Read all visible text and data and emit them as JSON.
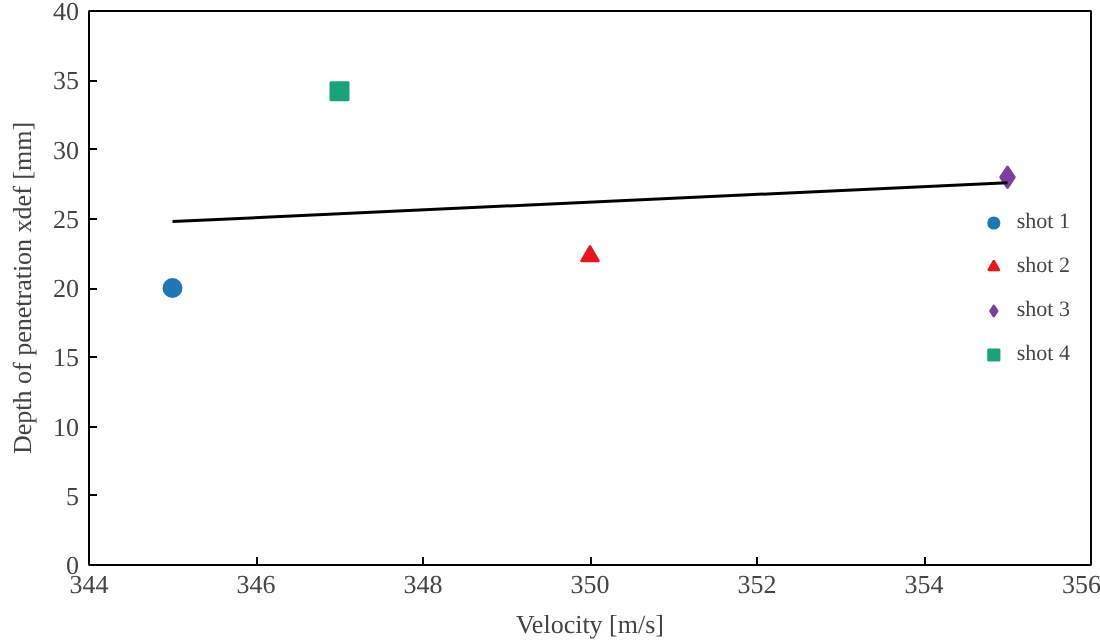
{
  "chart_data": {
    "type": "scatter",
    "xlabel": "Velocity [m/s]",
    "ylabel": "Depth of penetration xdef [mm]",
    "xlim": [
      344,
      356
    ],
    "xticks": [
      344,
      346,
      348,
      350,
      352,
      354,
      356
    ],
    "ylim": [
      0,
      40
    ],
    "yticks": [
      0,
      5,
      10,
      15,
      20,
      25,
      30,
      35,
      40
    ],
    "grid": false,
    "legend": "right",
    "series": [
      {
        "name": "shot 1",
        "color": "#1f77b4",
        "marker": "circle",
        "x": [
          345
        ],
        "values": [
          20
        ]
      },
      {
        "name": "shot 2",
        "color": "#e8161b",
        "marker": "triangle",
        "x": [
          350
        ],
        "values": [
          22.3
        ]
      },
      {
        "name": "shot 3",
        "color": "#7b3fa0",
        "marker": "diamond",
        "x": [
          355
        ],
        "values": [
          28
        ]
      },
      {
        "name": "shot 4",
        "color": "#1aa37a",
        "marker": "square",
        "x": [
          347
        ],
        "values": [
          34.2
        ]
      },
      {
        "type": "line",
        "color": "#000000",
        "x": [
          345,
          355
        ],
        "values": [
          24.8,
          27.6
        ]
      }
    ]
  }
}
